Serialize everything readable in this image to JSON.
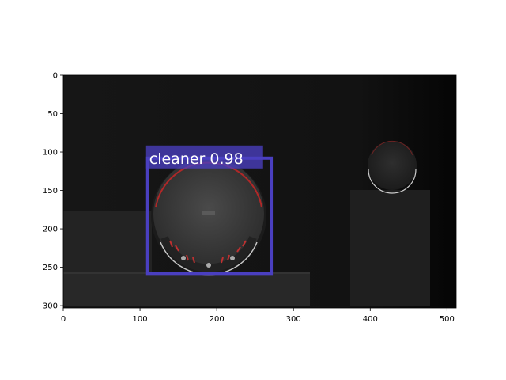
{
  "detection": {
    "label": "cleaner 0.98",
    "class": "cleaner",
    "score": 0.98,
    "box": {
      "x_min": 110,
      "y_min": 108,
      "x_max": 271,
      "y_max": 258
    },
    "box_color": "#4a3fc0"
  },
  "axes": {
    "x_ticks": [
      0,
      100,
      200,
      300,
      400,
      500
    ],
    "y_ticks": [
      0,
      50,
      100,
      150,
      200,
      250,
      300
    ],
    "x_range": [
      0,
      512
    ],
    "y_range": [
      0,
      303
    ],
    "y_inverted": true
  },
  "scene": {
    "background_color": "#111111"
  }
}
